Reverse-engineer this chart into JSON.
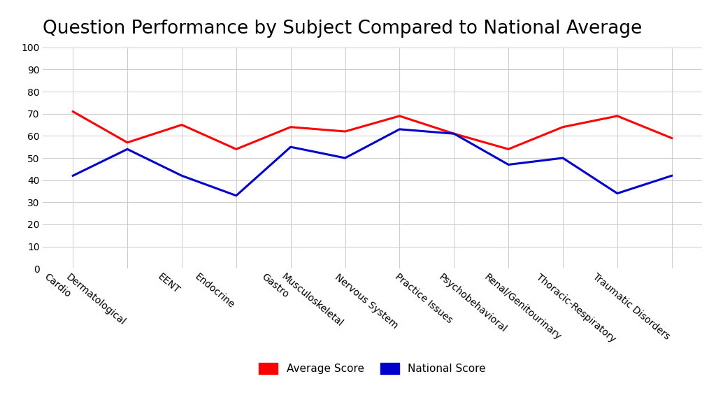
{
  "title": "Question Performance by Subject Compared to National Average",
  "categories": [
    "Cardio",
    "Dermatological",
    "EENT",
    "Endocrine",
    "Gastro",
    "Musculoskeletal",
    "Nervous System",
    "Practice Issues",
    "Psychobehavioral",
    "Renal/Genitourinary",
    "Thoracic-Respiratory",
    "Traumatic Disorders"
  ],
  "average_score": [
    71,
    57,
    65,
    54,
    64,
    62,
    69,
    61,
    54,
    64,
    69,
    59
  ],
  "national_score": [
    42,
    54,
    42,
    33,
    55,
    50,
    63,
    61,
    47,
    50,
    34,
    42
  ],
  "average_score_color": "#FF0000",
  "national_score_color": "#0000CC",
  "ylim": [
    0,
    100
  ],
  "yticks": [
    0,
    10,
    20,
    30,
    40,
    50,
    60,
    70,
    80,
    90,
    100
  ],
  "background_color": "#FFFFFF",
  "grid_color": "#CCCCCC",
  "title_fontsize": 19,
  "tick_fontsize": 10,
  "legend_fontsize": 11,
  "line_width": 2.2
}
